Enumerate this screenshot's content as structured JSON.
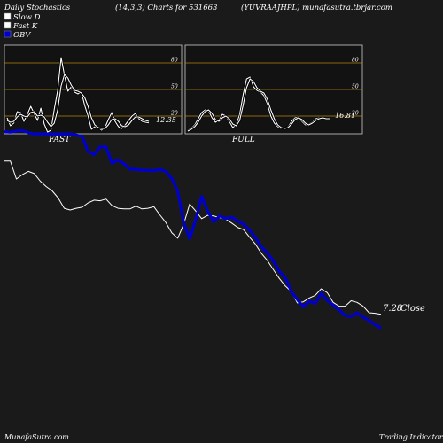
{
  "header": {
    "left": "Daily Stochastics",
    "middle": "(14,3,3) Charts for 531663",
    "right": "(YUVRAAJHPL) munafasutra.tbrjar.com"
  },
  "legend": {
    "items": [
      {
        "label": "Slow  D",
        "swatch": "#ffffff"
      },
      {
        "label": "Fast K",
        "swatch": "#ffffff"
      },
      {
        "label": "OBV",
        "swatch": "#0000cc"
      }
    ]
  },
  "footer": {
    "left": "MunafaSutra.com",
    "right": "Trading Indicators"
  },
  "colors": {
    "background": "#1b1a1a",
    "panel": "#121212",
    "level_line": "#b8860b",
    "price_line": "#ffffff",
    "obv_line": "#0000cc"
  },
  "chart_data": [
    {
      "type": "line",
      "panel": "fast",
      "title": "FAST",
      "ylim": [
        0,
        100
      ],
      "levels": [
        20,
        50,
        80
      ],
      "tick_labels": [
        "20",
        "50",
        "80"
      ],
      "last_value_label": "12.35",
      "series": [
        {
          "values": [
            18,
            9,
            12,
            25,
            24,
            14,
            22,
            31,
            23,
            15,
            29,
            11,
            2,
            4,
            28,
            49,
            86,
            66,
            48,
            53,
            47,
            45,
            47,
            32,
            20,
            5,
            8,
            7,
            4,
            7,
            16,
            24,
            14,
            8,
            6,
            10,
            15,
            20,
            23,
            17,
            14,
            13,
            12.35
          ]
        },
        {
          "values": [
            15,
            13,
            14,
            19,
            22,
            20,
            19,
            24,
            25,
            20,
            21,
            19,
            13,
            8,
            12,
            27,
            54,
            67,
            63,
            55,
            49,
            48,
            46,
            41,
            31,
            18,
            10,
            7,
            6,
            6,
            10,
            16,
            17,
            14,
            9,
            8,
            10,
            15,
            19,
            19,
            17,
            15,
            14
          ]
        }
      ]
    },
    {
      "type": "line",
      "panel": "full",
      "title": "FULL",
      "ylim": [
        0,
        100
      ],
      "levels": [
        20,
        50,
        80
      ],
      "tick_labels": [
        "20",
        "50",
        "80"
      ],
      "last_value_label": "16.81",
      "series": [
        {
          "values": [
            4,
            6,
            10,
            17,
            24,
            27,
            26,
            18,
            13,
            15,
            22,
            20,
            14,
            7,
            10,
            22,
            44,
            62,
            64,
            53,
            49,
            47,
            43,
            34,
            20,
            12,
            8,
            6,
            6,
            8,
            14,
            18,
            19,
            14,
            10,
            11,
            13,
            17,
            18,
            18,
            17,
            16.81
          ]
        },
        {
          "values": [
            3,
            5,
            8,
            13,
            20,
            25,
            27,
            23,
            16,
            14,
            18,
            20,
            17,
            11,
            9,
            15,
            32,
            52,
            62,
            59,
            52,
            48,
            46,
            39,
            27,
            17,
            10,
            7,
            6,
            7,
            11,
            16,
            18,
            16,
            12,
            10,
            12,
            15,
            17,
            18,
            17,
            17
          ]
        }
      ]
    },
    {
      "type": "line",
      "panel": "price-obv",
      "series": [
        {
          "name": "Close",
          "last_value_label": "7.28",
          "values": [
            10.1,
            10.1,
            9.77,
            9.85,
            9.91,
            9.87,
            9.73,
            9.63,
            9.55,
            9.42,
            9.23,
            9.2,
            9.23,
            9.25,
            9.33,
            9.38,
            9.37,
            9.4,
            9.28,
            9.23,
            9.22,
            9.22,
            9.27,
            9.22,
            9.23,
            9.26,
            9.11,
            8.97,
            8.78,
            8.68,
            8.94,
            9.31,
            9.18,
            9.04,
            9.1,
            9.09,
            9.06,
            9.03,
            8.96,
            8.88,
            8.84,
            8.7,
            8.57,
            8.4,
            8.27,
            8.1,
            7.94,
            7.8,
            7.7,
            7.49,
            7.51,
            7.58,
            7.63,
            7.75,
            7.68,
            7.5,
            7.43,
            7.43,
            7.53,
            7.5,
            7.43,
            7.31,
            7.3,
            7.28
          ]
        },
        {
          "name": "OBV",
          "values": [
            10.64,
            10.63,
            10.65,
            10.66,
            10.62,
            10.6,
            10.6,
            10.6,
            10.6,
            10.6,
            10.6,
            10.6,
            10.58,
            10.55,
            10.28,
            10.22,
            10.36,
            10.36,
            10.06,
            10.12,
            10.05,
            9.95,
            9.95,
            9.93,
            9.93,
            9.92,
            9.95,
            9.91,
            9.78,
            9.55,
            8.96,
            8.67,
            9.02,
            9.45,
            9.18,
            8.98,
            9.09,
            9.04,
            9.07,
            9.0,
            8.94,
            8.83,
            8.69,
            8.52,
            8.41,
            8.26,
            8.07,
            7.95,
            7.7,
            7.55,
            7.42,
            7.52,
            7.48,
            7.67,
            7.54,
            7.45,
            7.36,
            7.26,
            7.24,
            7.31,
            7.23,
            7.17,
            7.09,
            7.03
          ]
        }
      ]
    }
  ]
}
